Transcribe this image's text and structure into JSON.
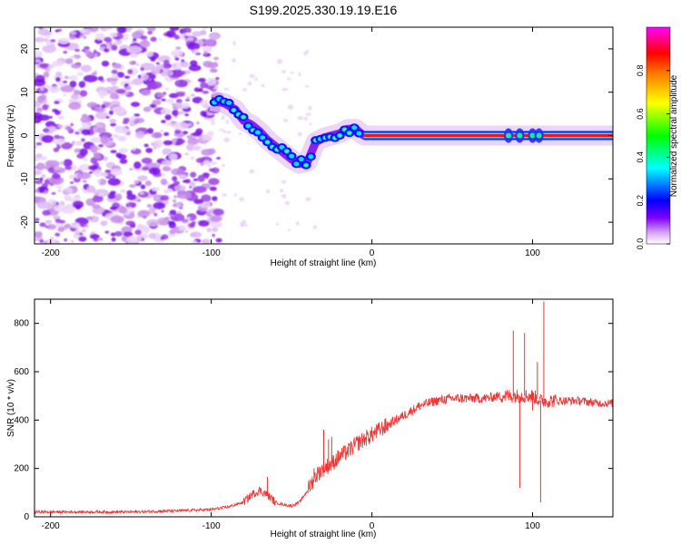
{
  "title": "S199.2025.330.19.19.E16",
  "chart_data": [
    {
      "type": "heatmap",
      "name": "spectrogram",
      "xlabel": "Height of straight line (km)",
      "ylabel": "Frequency (Hz)",
      "xlim": [
        -210,
        150
      ],
      "ylim": [
        -25,
        25
      ],
      "xticks": [
        -200,
        -100,
        0,
        100
      ],
      "yticks": [
        20,
        10,
        0,
        -10,
        -20
      ],
      "ridge": {
        "x": [
          -100,
          -92,
          -85,
          -80,
          -75,
          -70,
          -65,
          -60,
          -55,
          -50,
          -45,
          -40,
          -35,
          -30,
          -25,
          -20,
          -15,
          -10,
          -5,
          0,
          10,
          20,
          40,
          60,
          80,
          90,
          100,
          110,
          130,
          150
        ],
        "y": [
          8,
          7.5,
          6,
          3.5,
          2.5,
          1,
          -1,
          -2.5,
          -4,
          -5.5,
          -6.5,
          -6,
          -1.5,
          -0.5,
          0,
          0.5,
          1.5,
          1.5,
          0,
          0,
          0,
          0,
          0,
          0,
          0,
          0,
          0,
          0,
          0,
          0
        ]
      },
      "colorbar": {
        "label": "Normalized spectral amplitude",
        "range": [
          0,
          1
        ],
        "ticks": [
          "0.0",
          "0.2",
          "0.4",
          "0.6",
          "0.8"
        ],
        "colors": [
          "#ffffff",
          "#d9a8f2",
          "#7f00ff",
          "#0000ff",
          "#00ffff",
          "#00ff00",
          "#ffff00",
          "#ff8000",
          "#ff0000",
          "#ff00ff"
        ]
      }
    },
    {
      "type": "line",
      "name": "snr",
      "xlabel": "Height of straight line (km)",
      "ylabel": "SNR (10 * v/v)",
      "xlim": [
        -210,
        150
      ],
      "ylim": [
        0,
        900
      ],
      "xticks": [
        -200,
        -100,
        0,
        100
      ],
      "yticks": [
        0,
        200,
        400,
        600,
        800
      ],
      "color": "#ee3333",
      "series": [
        {
          "name": "SNR",
          "x": [
            -210,
            -180,
            -150,
            -120,
            -100,
            -90,
            -80,
            -75,
            -70,
            -65,
            -60,
            -55,
            -50,
            -45,
            -40,
            -35,
            -30,
            -25,
            -20,
            -15,
            -10,
            -5,
            0,
            5,
            10,
            15,
            20,
            25,
            30,
            40,
            50,
            60,
            70,
            80,
            90,
            95,
            100,
            105,
            110,
            120,
            130,
            140,
            150
          ],
          "y": [
            20,
            20,
            20,
            25,
            30,
            40,
            60,
            90,
            110,
            90,
            60,
            50,
            45,
            60,
            110,
            170,
            200,
            220,
            250,
            270,
            300,
            320,
            340,
            360,
            380,
            400,
            420,
            440,
            460,
            480,
            490,
            490,
            490,
            500,
            500,
            500,
            500,
            480,
            480,
            480,
            480,
            470,
            470
          ]
        }
      ],
      "spikes": {
        "x": [
          -65,
          -36,
          -30,
          -27,
          -25,
          88,
          92,
          95,
          100,
          103,
          105,
          107
        ],
        "y": [
          165,
          200,
          360,
          320,
          330,
          770,
          120,
          760,
          440,
          640,
          60,
          890
        ]
      }
    }
  ]
}
